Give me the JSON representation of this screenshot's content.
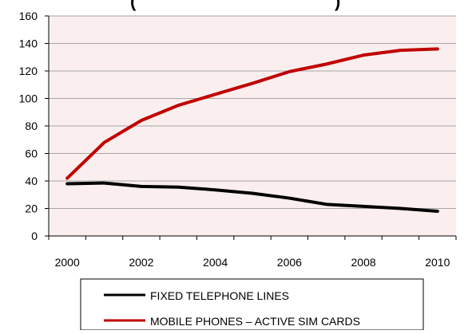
{
  "chart_data": {
    "type": "line",
    "title": "(",
    "title_suffix": ")",
    "x": [
      2000,
      2001,
      2002,
      2003,
      2004,
      2005,
      2006,
      2007,
      2008,
      2009,
      2010
    ],
    "x_tick_labels": [
      "2000",
      "2002",
      "2004",
      "2006",
      "2008",
      "2010"
    ],
    "y_tick_labels": [
      "0",
      "20",
      "40",
      "60",
      "80",
      "100",
      "120",
      "140",
      "160"
    ],
    "xlabel": "",
    "ylabel": "",
    "xlim": [
      2000,
      2010
    ],
    "ylim": [
      0,
      160
    ],
    "grid": true,
    "plot_background": "#fbeeee",
    "gridline_color": "#a6a6a6",
    "legend_placement": "bottom",
    "series": [
      {
        "name": "FIXED TELEPHONE LINES",
        "color": "#000000",
        "values": [
          38,
          38.5,
          36,
          35.5,
          33.5,
          31,
          27.5,
          23,
          21.5,
          20,
          18
        ]
      },
      {
        "name": "MOBILE PHONES – ACTIVE SIM CARDS",
        "color": "#c00000",
        "values": [
          42,
          68,
          84,
          95,
          103,
          111,
          119.5,
          125,
          131.5,
          135,
          136
        ]
      }
    ]
  }
}
